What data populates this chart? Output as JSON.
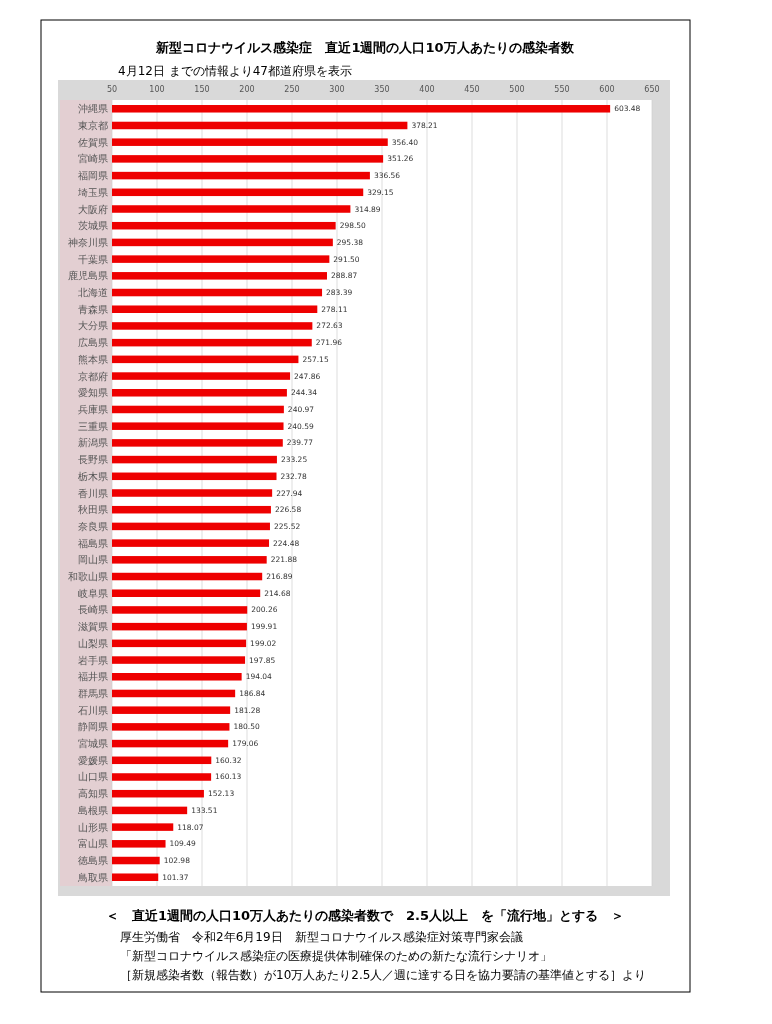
{
  "chart_data": {
    "type": "bar",
    "orientation": "horizontal",
    "title": "新型コロナウイルス感染症　直近1週間の人口10万人あたりの感染者数",
    "subtitle": "4月12日  までの情報より47都道府県を表示",
    "categories": [
      "沖縄県",
      "東京都",
      "佐賀県",
      "宮崎県",
      "福岡県",
      "埼玉県",
      "大阪府",
      "茨城県",
      "神奈川県",
      "千葉県",
      "鹿児島県",
      "北海道",
      "青森県",
      "大分県",
      "広島県",
      "熊本県",
      "京都府",
      "愛知県",
      "兵庫県",
      "三重県",
      "新潟県",
      "長野県",
      "栃木県",
      "香川県",
      "秋田県",
      "奈良県",
      "福島県",
      "岡山県",
      "和歌山県",
      "岐阜県",
      "長崎県",
      "滋賀県",
      "山梨県",
      "岩手県",
      "福井県",
      "群馬県",
      "石川県",
      "静岡県",
      "宮城県",
      "愛媛県",
      "山口県",
      "高知県",
      "島根県",
      "山形県",
      "富山県",
      "徳島県",
      "鳥取県"
    ],
    "values": [
      603.48,
      378.21,
      356.4,
      351.26,
      336.56,
      329.15,
      314.89,
      298.5,
      295.38,
      291.5,
      288.87,
      283.39,
      278.11,
      272.63,
      271.96,
      257.15,
      247.86,
      244.34,
      240.97,
      240.59,
      239.77,
      233.25,
      232.78,
      227.94,
      226.58,
      225.52,
      224.48,
      221.88,
      216.89,
      214.68,
      200.26,
      199.91,
      199.02,
      197.85,
      194.04,
      186.84,
      181.28,
      180.5,
      179.06,
      160.32,
      160.13,
      152.13,
      133.51,
      118.07,
      109.49,
      102.98,
      101.37
    ],
    "value_labels": [
      "603.48",
      "378.21",
      "356.40",
      "351.26",
      "336.56",
      "329.15",
      "314.89",
      "298.50",
      "295.38",
      "291.50",
      "288.87",
      "283.39",
      "278.11",
      "272.63",
      "271.96",
      "257.15",
      "247.86",
      "244.34",
      "240.97",
      "240.59",
      "239.77",
      "233.25",
      "232.78",
      "227.94",
      "226.58",
      "225.52",
      "224.48",
      "221.88",
      "216.89",
      "214.68",
      "200.26",
      "199.91",
      "199.02",
      "197.85",
      "194.04",
      "186.84",
      "181.28",
      "180.50",
      "179.06",
      "160.32",
      "160.13",
      "152.13",
      "133.51",
      "118.07",
      "109.49",
      "102.98",
      "101.37"
    ],
    "color": "#ee0000",
    "xlim": [
      50,
      650
    ],
    "xticks": [
      50,
      100,
      150,
      200,
      250,
      300,
      350,
      400,
      450,
      500,
      550,
      600,
      650
    ],
    "grid": "x",
    "annotations": [
      "＜　直近1週間の人口10万人あたりの感染者数で　2.5人以上　を「流行地」とする　＞",
      "厚生労働省　令和2年6月19日　新型コロナウイルス感染症対策専門家会議",
      "「新型コロナウイルス感染症の医療提供体制確保のための新たな流行シナリオ」",
      "［新規感染者数（報告数）が10万人あたり2.5人／週に達する日を協力要請の基準値とする］より"
    ]
  }
}
